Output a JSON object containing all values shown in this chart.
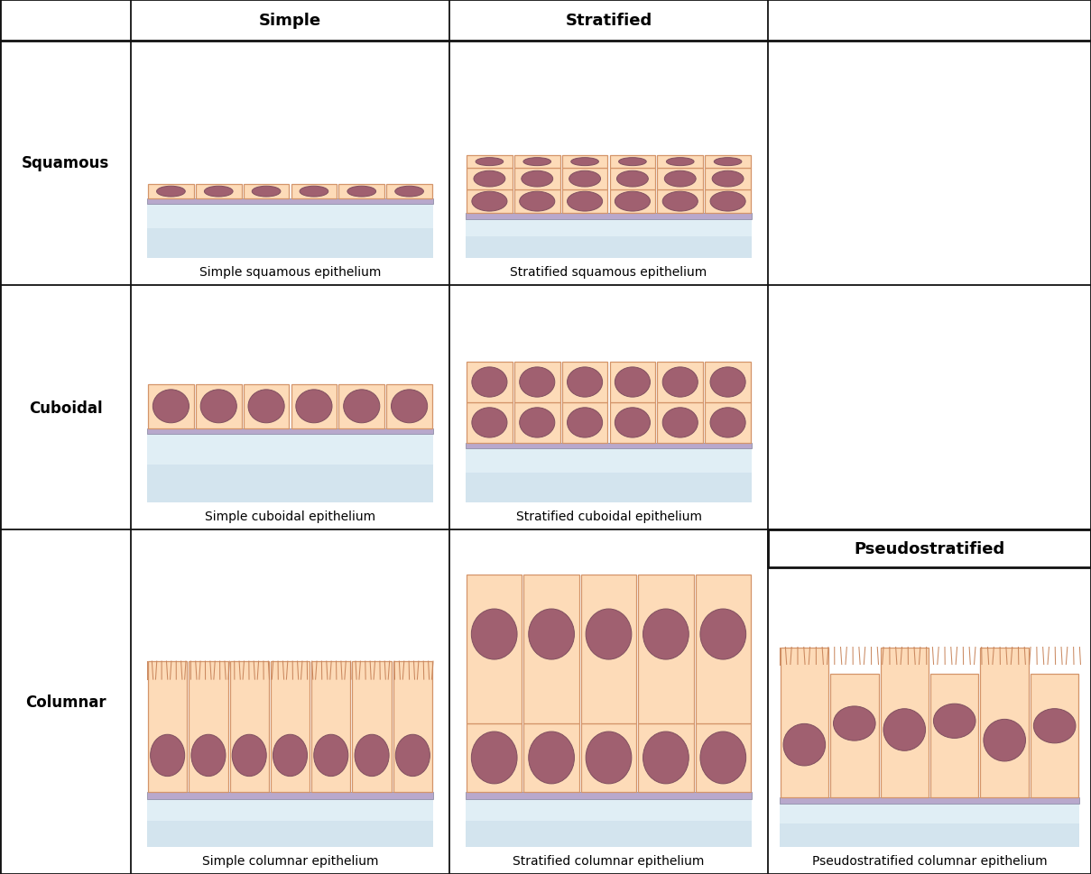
{
  "col_headers": [
    "Simple",
    "Stratified"
  ],
  "row_headers": [
    "Squamous",
    "Cuboidal",
    "Columnar"
  ],
  "pseudo_header": "Pseudostratified",
  "cell_labels": [
    [
      "Simple squamous epithelium",
      "Stratified squamous epithelium"
    ],
    [
      "Simple cuboidal epithelium",
      "Stratified cuboidal epithelium"
    ],
    [
      "Simple columnar epithelium",
      "Stratified columnar epithelium",
      "Pseudostratified columnar epithelium"
    ]
  ],
  "colors": {
    "cell_fill": "#FDDBB8",
    "cell_fill_light": "#FDE8CC",
    "nucleus_fill": "#A06070",
    "nucleus_edge": "#805060",
    "cell_edge": "#D4956A",
    "basement_fill": "#B8A8CC",
    "basement_edge": "#9090AA",
    "fluid_top": "#E0EEF5",
    "fluid_bot": "#C8DCE8",
    "background": "#FFFFFF",
    "border": "#111111",
    "cilia_color": "#C8845A"
  },
  "layout": {
    "fig_width": 12.09,
    "fig_height": 9.7,
    "dpi": 100,
    "header_fontsize": 13,
    "label_fontsize": 10,
    "row_header_fontsize": 12
  }
}
